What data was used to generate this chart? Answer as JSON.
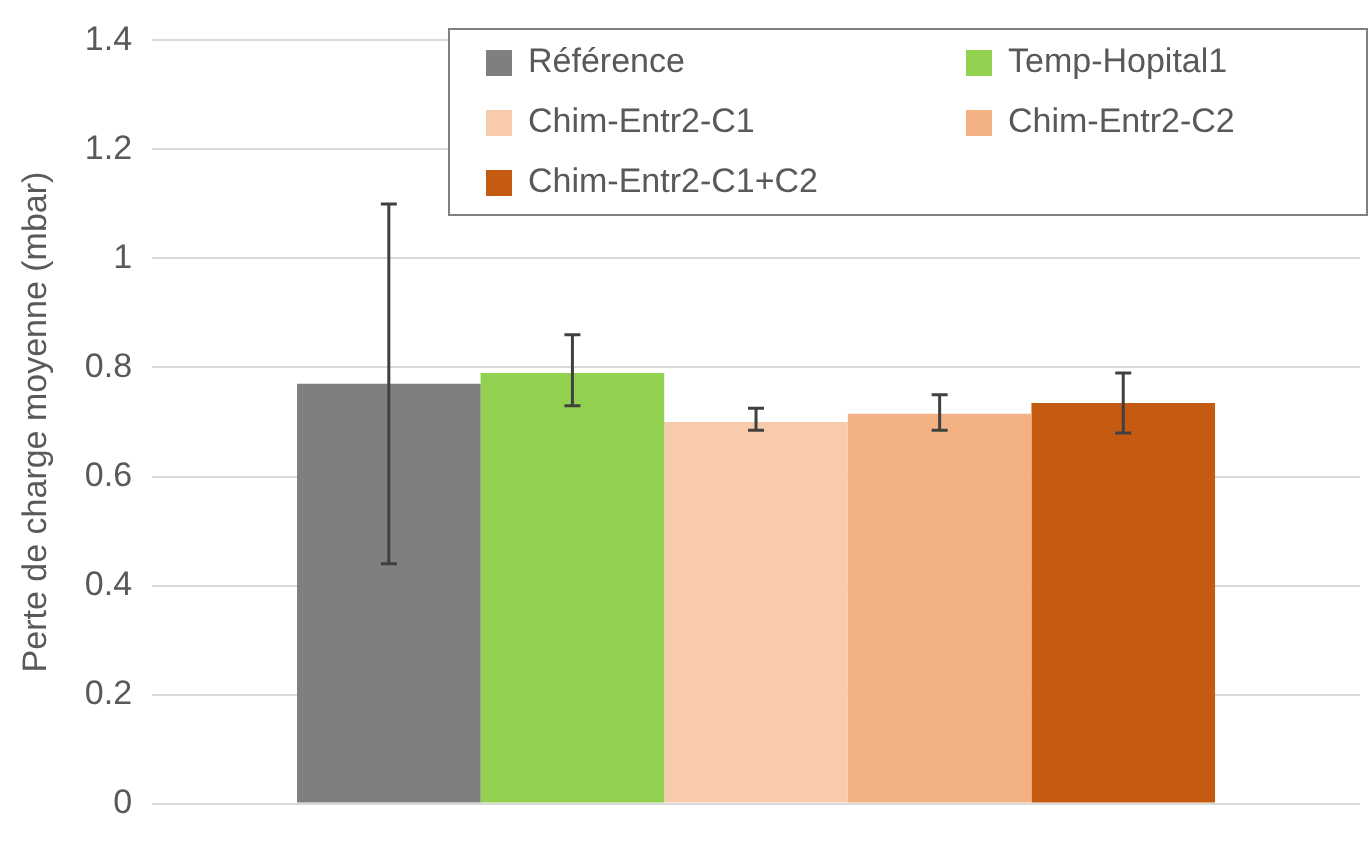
{
  "chart_data": {
    "type": "bar",
    "ylabel": "Perte de charge moyenne (mbar)",
    "categories": [
      null
    ],
    "series": [
      {
        "name": "Référence",
        "color": "#7f7f7f",
        "values": [
          0.77
        ],
        "errors": [
          [
            0.44,
            1.1
          ]
        ]
      },
      {
        "name": "Temp-Hopital1",
        "color": "#92d050",
        "values": [
          0.79
        ],
        "errors": [
          [
            0.73,
            0.86
          ]
        ]
      },
      {
        "name": "Chim-Entr2-C1",
        "color": "#f8cbad",
        "values": [
          0.7
        ],
        "errors": [
          [
            0.685,
            0.725
          ]
        ]
      },
      {
        "name": "Chim-Entr2-C2",
        "color": "#f4b183",
        "values": [
          0.715
        ],
        "errors": [
          [
            0.685,
            0.75
          ]
        ]
      },
      {
        "name": "Chim-Entr2-C1+C2",
        "color": "#c55a11",
        "values": [
          0.735
        ],
        "errors": [
          [
            0.68,
            0.79
          ]
        ]
      }
    ],
    "ylim": [
      0,
      1.4
    ],
    "yticks": [
      0,
      0.2,
      0.4,
      0.6,
      0.8,
      1,
      1.2,
      1.4
    ],
    "grid": "y",
    "legend": "top right"
  }
}
